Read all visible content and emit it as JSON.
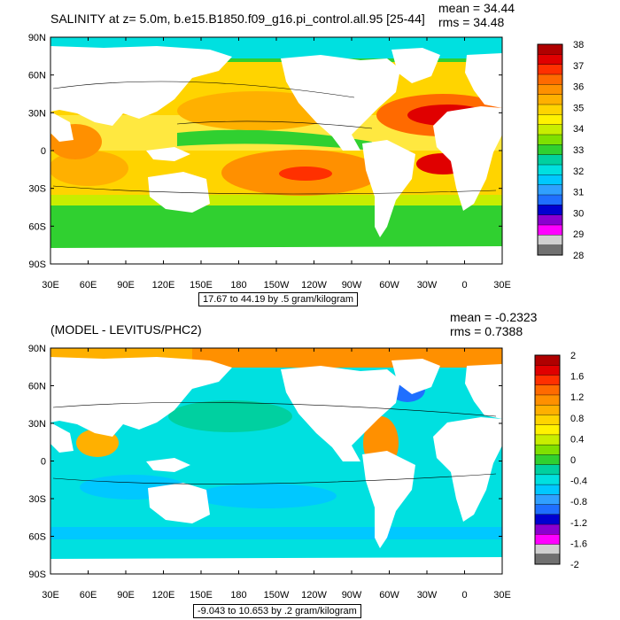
{
  "panels": [
    {
      "title": "SALINITY at z=   5.0m, b.e15.B1850.f09_g16.pi_control.all.95 [25-44]",
      "mean_text": "mean = 34.44",
      "rms_text": "rms = 34.48",
      "contour_info": "17.67 to 44.19 by .5 gram/kilogram",
      "colorbar": {
        "labels": [
          "38",
          "37",
          "36",
          "35",
          "34",
          "33",
          "32",
          "31",
          "30",
          "29",
          "28"
        ],
        "colors": [
          "#b00000",
          "#e00000",
          "#ff3000",
          "#ff6a00",
          "#ff9000",
          "#ffb000",
          "#ffd400",
          "#fff200",
          "#c8ee00",
          "#7fe000",
          "#30d030",
          "#00d0a0",
          "#00e0e0",
          "#00c8ff",
          "#30a0ff",
          "#1f6fff",
          "#0000d0",
          "#8a00d0",
          "#ff00ff",
          "#d0d0d0",
          "#707070"
        ]
      }
    },
    {
      "title": "(MODEL - LEVITUS/PHC2)",
      "mean_text": "mean = -0.2323",
      "rms_text": "rms = 0.7388",
      "contour_info": "-9.043 to 10.653 by .2 gram/kilogram",
      "colorbar": {
        "labels": [
          "2",
          "1.6",
          "1.2",
          "0.8",
          "0.4",
          "0",
          "-0.4",
          "-0.8",
          "-1.2",
          "-1.6",
          "-2"
        ],
        "colors": [
          "#b00000",
          "#e00000",
          "#ff3000",
          "#ff6a00",
          "#ff9000",
          "#ffb000",
          "#ffd400",
          "#fff200",
          "#c8ee00",
          "#7fe000",
          "#30d030",
          "#00d0a0",
          "#00e0e0",
          "#00c8ff",
          "#30a0ff",
          "#1f6fff",
          "#0000d0",
          "#8a00d0",
          "#ff00ff",
          "#d0d0d0",
          "#707070"
        ]
      }
    }
  ],
  "lat_labels": [
    "90N",
    "60N",
    "30N",
    "0",
    "30S",
    "60S",
    "90S"
  ],
  "lon_labels": [
    "30E",
    "60E",
    "90E",
    "120E",
    "150E",
    "180",
    "150W",
    "120W",
    "90W",
    "60W",
    "30W",
    "0",
    "30E"
  ]
}
